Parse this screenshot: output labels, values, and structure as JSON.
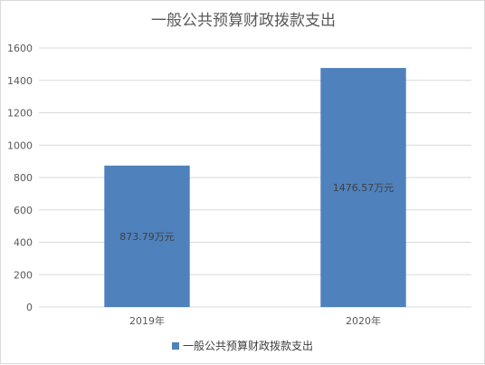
{
  "chart_data": {
    "type": "bar",
    "title": "一般公共预算财政拨款支出",
    "categories": [
      "2019年",
      "2020年"
    ],
    "series": [
      {
        "name": "一般公共预算财政拨款支出",
        "values": [
          873.79,
          1476.57
        ],
        "data_labels": [
          "873.79万元",
          "1476.57万元"
        ],
        "color": "#4f81bd"
      }
    ],
    "ylim": [
      0,
      1600
    ],
    "yticks": [
      "0",
      "200",
      "400",
      "600",
      "800",
      "1000",
      "1200",
      "1400",
      "1600"
    ],
    "grid": true,
    "legend_position": "bottom",
    "xlabel": "",
    "ylabel": ""
  }
}
